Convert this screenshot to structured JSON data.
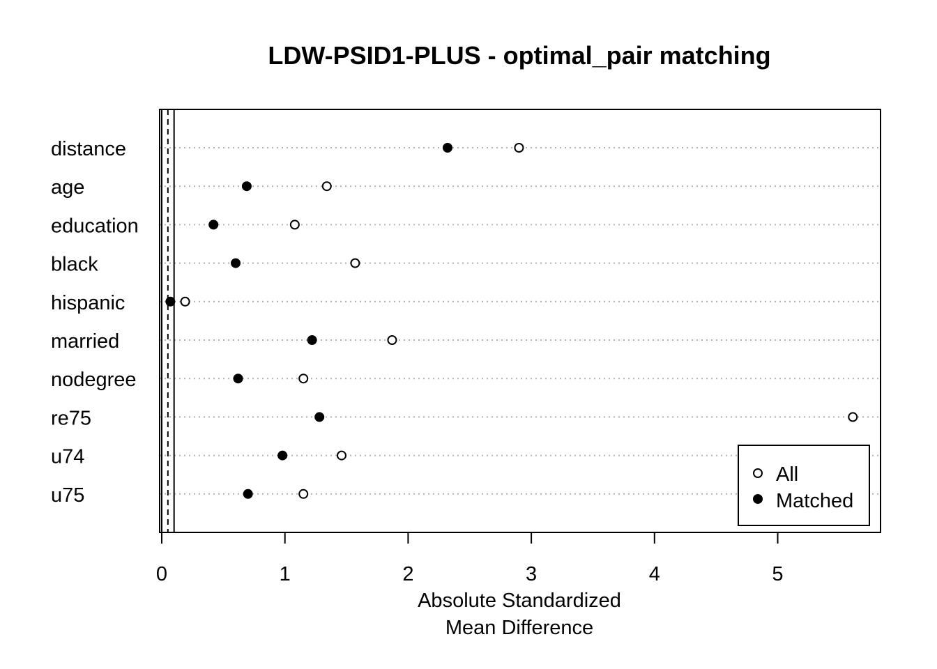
{
  "chart_data": {
    "type": "scatter",
    "title": "LDW-PSID1-PLUS - optimal_pair matching",
    "xlabel_lines": [
      "Absolute Standardized",
      "Mean Difference"
    ],
    "x_ticks": [
      "0",
      "1",
      "2",
      "3",
      "4",
      "5"
    ],
    "x_tick_values": [
      0,
      1,
      2,
      3,
      4,
      5
    ],
    "xlim": [
      0,
      5.8
    ],
    "reference_lines": {
      "solid": [
        0,
        0.1
      ],
      "dashed": [
        0.05
      ]
    },
    "grid": "dotted horizontal",
    "legend_position": "bottom-right",
    "categories": [
      "distance",
      "age",
      "education",
      "black",
      "hispanic",
      "married",
      "nodegree",
      "re75",
      "u74",
      "u75"
    ],
    "series": [
      {
        "name": "All",
        "marker": "open-circle",
        "values": [
          2.9,
          1.34,
          1.08,
          1.57,
          0.19,
          1.87,
          1.15,
          5.61,
          1.46,
          1.15
        ]
      },
      {
        "name": "Matched",
        "marker": "filled-circle",
        "values": [
          2.32,
          0.69,
          0.42,
          0.6,
          0.07,
          1.22,
          0.62,
          1.28,
          0.98,
          0.7
        ]
      }
    ]
  }
}
